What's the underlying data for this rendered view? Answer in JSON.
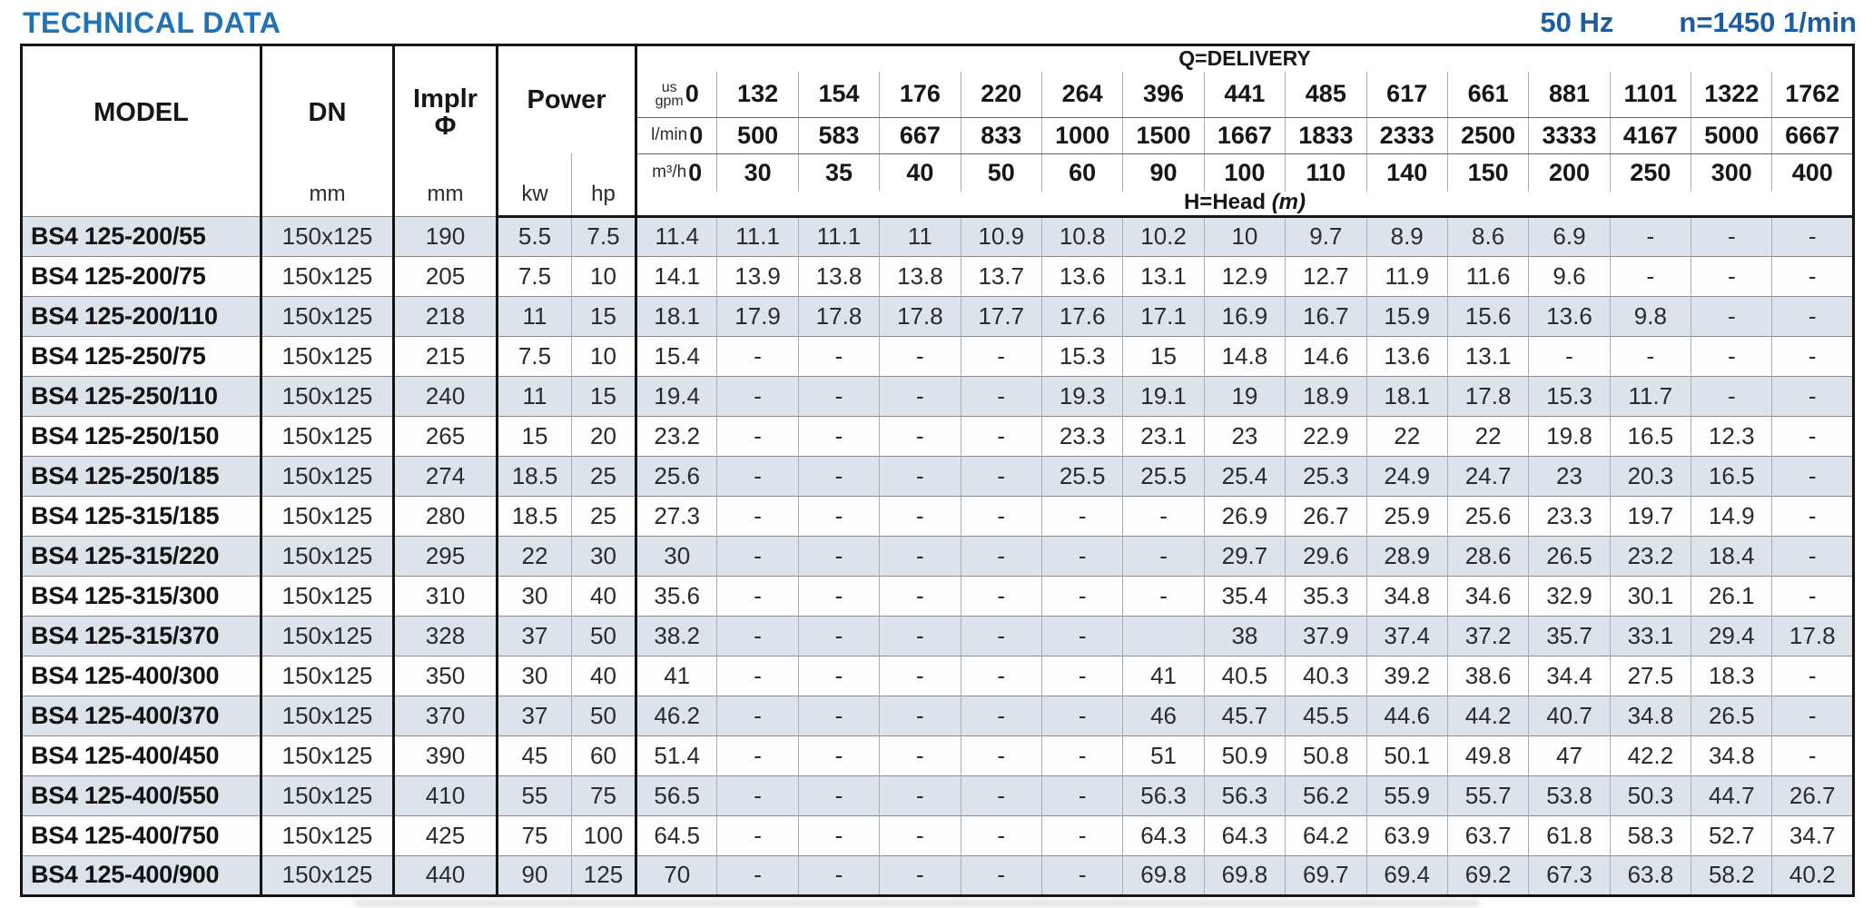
{
  "header": {
    "title": "TECHNICAL DATA",
    "frequency": "50 Hz",
    "speed": "n=1450 1/min"
  },
  "colors": {
    "title_blue": "#2173b4",
    "navy": "#1d5c9e",
    "row_shade": "#dce3ea"
  },
  "table": {
    "col_headers": {
      "model": "MODEL",
      "dn": "DN",
      "dn_unit": "mm",
      "implr_line1": "Implr",
      "implr_line2": "Φ",
      "implr_unit": "mm",
      "power": "Power",
      "power_kw": "kw",
      "power_hp": "hp",
      "delivery": "Q=DELIVERY",
      "head_label": "H=Head",
      "head_unit": "(m)",
      "unit_usgpm_top": "us",
      "unit_usgpm_bottom": "gpm",
      "unit_lmin": "l/min",
      "unit_m3h": "m³/h"
    },
    "delivery_cols": {
      "us_gpm": [
        "0",
        "132",
        "154",
        "176",
        "220",
        "264",
        "396",
        "441",
        "485",
        "617",
        "661",
        "881",
        "1101",
        "1322",
        "1762"
      ],
      "l_min": [
        "0",
        "500",
        "583",
        "667",
        "833",
        "1000",
        "1500",
        "1667",
        "1833",
        "2333",
        "2500",
        "3333",
        "4167",
        "5000",
        "6667"
      ],
      "m3_h": [
        "0",
        "30",
        "35",
        "40",
        "50",
        "60",
        "90",
        "100",
        "110",
        "140",
        "150",
        "200",
        "250",
        "300",
        "400"
      ]
    },
    "rows": [
      {
        "model": "BS4 125-200/55",
        "dn": "150x125",
        "implr": "190",
        "kw": "5.5",
        "hp": "7.5",
        "head": [
          "11.4",
          "11.1",
          "11.1",
          "11",
          "10.9",
          "10.8",
          "10.2",
          "10",
          "9.7",
          "8.9",
          "8.6",
          "6.9",
          "-",
          "-",
          "-"
        ]
      },
      {
        "model": "BS4 125-200/75",
        "dn": "150x125",
        "implr": "205",
        "kw": "7.5",
        "hp": "10",
        "head": [
          "14.1",
          "13.9",
          "13.8",
          "13.8",
          "13.7",
          "13.6",
          "13.1",
          "12.9",
          "12.7",
          "11.9",
          "11.6",
          "9.6",
          "-",
          "-",
          "-"
        ]
      },
      {
        "model": "BS4 125-200/110",
        "dn": "150x125",
        "implr": "218",
        "kw": "11",
        "hp": "15",
        "head": [
          "18.1",
          "17.9",
          "17.8",
          "17.8",
          "17.7",
          "17.6",
          "17.1",
          "16.9",
          "16.7",
          "15.9",
          "15.6",
          "13.6",
          "9.8",
          "-",
          "-"
        ]
      },
      {
        "model": "BS4 125-250/75",
        "dn": "150x125",
        "implr": "215",
        "kw": "7.5",
        "hp": "10",
        "head": [
          "15.4",
          "-",
          "-",
          "-",
          "-",
          "15.3",
          "15",
          "14.8",
          "14.6",
          "13.6",
          "13.1",
          "-",
          "-",
          "-",
          "-"
        ]
      },
      {
        "model": "BS4 125-250/110",
        "dn": "150x125",
        "implr": "240",
        "kw": "11",
        "hp": "15",
        "head": [
          "19.4",
          "-",
          "-",
          "-",
          "-",
          "19.3",
          "19.1",
          "19",
          "18.9",
          "18.1",
          "17.8",
          "15.3",
          "11.7",
          "-",
          "-"
        ]
      },
      {
        "model": "BS4 125-250/150",
        "dn": "150x125",
        "implr": "265",
        "kw": "15",
        "hp": "20",
        "head": [
          "23.2",
          "-",
          "-",
          "-",
          "-",
          "23.3",
          "23.1",
          "23",
          "22.9",
          "22",
          "22",
          "19.8",
          "16.5",
          "12.3",
          "-"
        ]
      },
      {
        "model": "BS4 125-250/185",
        "dn": "150x125",
        "implr": "274",
        "kw": "18.5",
        "hp": "25",
        "head": [
          "25.6",
          "-",
          "-",
          "-",
          "-",
          "25.5",
          "25.5",
          "25.4",
          "25.3",
          "24.9",
          "24.7",
          "23",
          "20.3",
          "16.5",
          "-"
        ]
      },
      {
        "model": "BS4 125-315/185",
        "dn": "150x125",
        "implr": "280",
        "kw": "18.5",
        "hp": "25",
        "head": [
          "27.3",
          "-",
          "-",
          "-",
          "-",
          "-",
          "-",
          "26.9",
          "26.7",
          "25.9",
          "25.6",
          "23.3",
          "19.7",
          "14.9",
          "-"
        ]
      },
      {
        "model": "BS4 125-315/220",
        "dn": "150x125",
        "implr": "295",
        "kw": "22",
        "hp": "30",
        "head": [
          "30",
          "-",
          "-",
          "-",
          "-",
          "-",
          "-",
          "29.7",
          "29.6",
          "28.9",
          "28.6",
          "26.5",
          "23.2",
          "18.4",
          "-"
        ]
      },
      {
        "model": "BS4 125-315/300",
        "dn": "150x125",
        "implr": "310",
        "kw": "30",
        "hp": "40",
        "head": [
          "35.6",
          "-",
          "-",
          "-",
          "-",
          "-",
          "-",
          "35.4",
          "35.3",
          "34.8",
          "34.6",
          "32.9",
          "30.1",
          "26.1",
          "-"
        ]
      },
      {
        "model": "BS4 125-315/370",
        "dn": "150x125",
        "implr": "328",
        "kw": "37",
        "hp": "50",
        "head": [
          "38.2",
          "-",
          "-",
          "-",
          "-",
          "-",
          "",
          "38",
          "37.9",
          "37.4",
          "37.2",
          "35.7",
          "33.1",
          "29.4",
          "17.8"
        ]
      },
      {
        "model": "BS4 125-400/300",
        "dn": "150x125",
        "implr": "350",
        "kw": "30",
        "hp": "40",
        "head": [
          "41",
          "-",
          "-",
          "-",
          "-",
          "-",
          "41",
          "40.5",
          "40.3",
          "39.2",
          "38.6",
          "34.4",
          "27.5",
          "18.3",
          "-"
        ]
      },
      {
        "model": "BS4 125-400/370",
        "dn": "150x125",
        "implr": "370",
        "kw": "37",
        "hp": "50",
        "head": [
          "46.2",
          "-",
          "-",
          "-",
          "-",
          "-",
          "46",
          "45.7",
          "45.5",
          "44.6",
          "44.2",
          "40.7",
          "34.8",
          "26.5",
          "-"
        ]
      },
      {
        "model": "BS4 125-400/450",
        "dn": "150x125",
        "implr": "390",
        "kw": "45",
        "hp": "60",
        "head": [
          "51.4",
          "-",
          "-",
          "-",
          "-",
          "-",
          "51",
          "50.9",
          "50.8",
          "50.1",
          "49.8",
          "47",
          "42.2",
          "34.8",
          "-"
        ]
      },
      {
        "model": "BS4 125-400/550",
        "dn": "150x125",
        "implr": "410",
        "kw": "55",
        "hp": "75",
        "head": [
          "56.5",
          "-",
          "-",
          "-",
          "-",
          "-",
          "56.3",
          "56.3",
          "56.2",
          "55.9",
          "55.7",
          "53.8",
          "50.3",
          "44.7",
          "26.7"
        ]
      },
      {
        "model": "BS4 125-400/750",
        "dn": "150x125",
        "implr": "425",
        "kw": "75",
        "hp": "100",
        "head": [
          "64.5",
          "-",
          "-",
          "-",
          "-",
          "-",
          "64.3",
          "64.3",
          "64.2",
          "63.9",
          "63.7",
          "61.8",
          "58.3",
          "52.7",
          "34.7"
        ]
      },
      {
        "model": "BS4 125-400/900",
        "dn": "150x125",
        "implr": "440",
        "kw": "90",
        "hp": "125",
        "head": [
          "70",
          "-",
          "-",
          "-",
          "-",
          "-",
          "69.8",
          "69.8",
          "69.7",
          "69.4",
          "69.2",
          "67.3",
          "63.8",
          "58.2",
          "40.2"
        ]
      }
    ]
  }
}
